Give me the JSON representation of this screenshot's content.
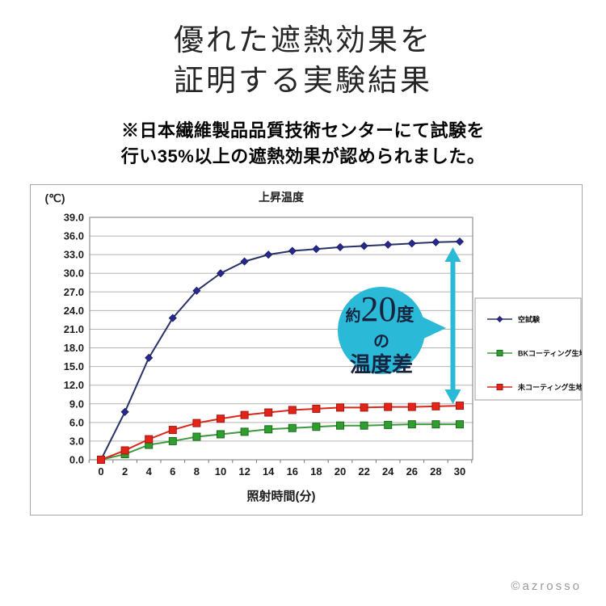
{
  "page": {
    "title_lines": [
      "優れた遮熱効果を",
      "証明する実験結果"
    ],
    "note_lines": [
      "※日本繊維製品品質技術センターにて試験を",
      "行い35%以上の遮熱効果が認められました。"
    ],
    "copyright": "©azrosso"
  },
  "chart_data": {
    "type": "line",
    "title": "上昇温度",
    "y_axis_unit": "(℃)",
    "xlabel": "照射時間(分)",
    "ylabel": "",
    "ylim": [
      0,
      39
    ],
    "ytick_step": 3,
    "ytick_labels": [
      "39.0",
      "36.0",
      "33.0",
      "30.0",
      "27.0",
      "24.0",
      "21.0",
      "18.0",
      "15.0",
      "12.0",
      "9.0",
      "6.0",
      "3.0",
      "0.0"
    ],
    "categories": [
      "0",
      "2",
      "4",
      "6",
      "8",
      "10",
      "12",
      "14",
      "16",
      "18",
      "20",
      "22",
      "24",
      "26",
      "28",
      "30"
    ],
    "grid": true,
    "grid_color": "#b3b3b3",
    "axis_color": "#7a7a7a",
    "legend_position": "right",
    "series": [
      {
        "id": "blank-test",
        "name": "空試験",
        "marker": "diamond",
        "color": "#273366",
        "marker_color": "#27288f",
        "marker_edge": "#1c1f5e",
        "values": [
          0.0,
          7.7,
          16.4,
          22.8,
          27.2,
          30.0,
          31.9,
          33.0,
          33.6,
          33.9,
          34.2,
          34.4,
          34.6,
          34.8,
          35.0,
          35.1
        ]
      },
      {
        "id": "bk-coated-fabric",
        "name": "BKコーティング生地",
        "marker": "square",
        "color": "#3f9a3f",
        "marker_color": "#2f9e2f",
        "marker_edge": "#1d6b1d",
        "values": [
          0.0,
          0.9,
          2.4,
          3.0,
          3.7,
          4.1,
          4.5,
          4.9,
          5.1,
          5.3,
          5.5,
          5.5,
          5.6,
          5.7,
          5.7,
          5.7
        ]
      },
      {
        "id": "uncoated-fabric",
        "name": "未コーティング生地",
        "marker": "square",
        "color": "#d8281c",
        "marker_color": "#e32519",
        "marker_edge": "#a81410",
        "values": [
          0.0,
          1.5,
          3.3,
          4.8,
          5.9,
          6.6,
          7.2,
          7.6,
          8.0,
          8.2,
          8.4,
          8.4,
          8.5,
          8.5,
          8.6,
          8.7
        ]
      }
    ]
  },
  "annotation": {
    "bubble_top_small": "約",
    "bubble_top_big": "20",
    "bubble_top_unit": "度",
    "bubble_middle": "の",
    "bubble_bottom": "温度差",
    "bubble_color": "#2ab9d7",
    "arrow_color": "#2ab9d7",
    "text_color": "#17243f"
  }
}
